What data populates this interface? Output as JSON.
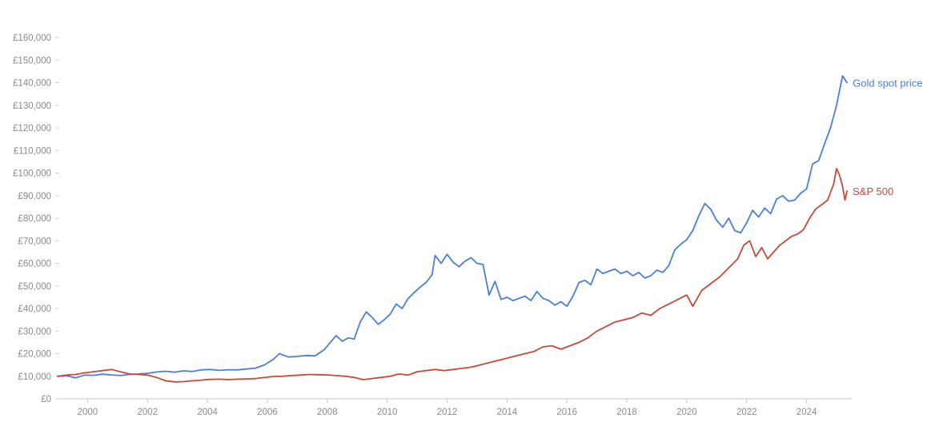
{
  "chart_data": {
    "type": "line",
    "title": "",
    "xlabel": "",
    "ylabel": "",
    "xlim": [
      1999.0,
      2025.4
    ],
    "ylim": [
      0,
      160000
    ],
    "grid": false,
    "legend": "labels at line ends",
    "y_ticks": [
      0,
      10000,
      20000,
      30000,
      40000,
      50000,
      60000,
      70000,
      80000,
      90000,
      100000,
      110000,
      120000,
      130000,
      140000,
      150000,
      160000
    ],
    "y_tick_labels": [
      "£0",
      "£10,000",
      "£20,000",
      "£30,000",
      "£40,000",
      "£50,000",
      "£60,000",
      "£70,000",
      "£80,000",
      "£90,000",
      "£100,000",
      "£110,000",
      "£120,000",
      "£130,000",
      "£140,000",
      "£150,000",
      "£160,000"
    ],
    "x_ticks": [
      2000,
      2002,
      2004,
      2006,
      2008,
      2010,
      2012,
      2014,
      2016,
      2018,
      2020,
      2022,
      2024
    ],
    "x_tick_labels": [
      "2000",
      "2002",
      "2004",
      "2006",
      "2008",
      "2010",
      "2012",
      "2014",
      "2016",
      "2018",
      "2020",
      "2022",
      "2024"
    ],
    "series": [
      {
        "name": "Gold spot price",
        "color": "#4a7fd8",
        "points": [
          [
            1999.0,
            10000
          ],
          [
            1999.3,
            10200
          ],
          [
            1999.6,
            9300
          ],
          [
            1999.9,
            10500
          ],
          [
            2000.2,
            10400
          ],
          [
            2000.5,
            10900
          ],
          [
            2000.8,
            10600
          ],
          [
            2001.1,
            10300
          ],
          [
            2001.4,
            10800
          ],
          [
            2001.7,
            11000
          ],
          [
            2002.0,
            11300
          ],
          [
            2002.3,
            11900
          ],
          [
            2002.6,
            12200
          ],
          [
            2002.9,
            11800
          ],
          [
            2003.2,
            12400
          ],
          [
            2003.5,
            12100
          ],
          [
            2003.8,
            12800
          ],
          [
            2004.1,
            13000
          ],
          [
            2004.4,
            12600
          ],
          [
            2004.7,
            12900
          ],
          [
            2005.0,
            12800
          ],
          [
            2005.3,
            13200
          ],
          [
            2005.6,
            13600
          ],
          [
            2005.9,
            15000
          ],
          [
            2006.2,
            17500
          ],
          [
            2006.4,
            20000
          ],
          [
            2006.7,
            18500
          ],
          [
            2007.0,
            18800
          ],
          [
            2007.3,
            19200
          ],
          [
            2007.6,
            19000
          ],
          [
            2007.9,
            21800
          ],
          [
            2008.1,
            25000
          ],
          [
            2008.3,
            28000
          ],
          [
            2008.5,
            25500
          ],
          [
            2008.7,
            27000
          ],
          [
            2008.9,
            26500
          ],
          [
            2009.1,
            34000
          ],
          [
            2009.3,
            38500
          ],
          [
            2009.5,
            36000
          ],
          [
            2009.7,
            33000
          ],
          [
            2009.9,
            35000
          ],
          [
            2010.1,
            37500
          ],
          [
            2010.3,
            42000
          ],
          [
            2010.5,
            40000
          ],
          [
            2010.7,
            44500
          ],
          [
            2010.9,
            47000
          ],
          [
            2011.1,
            49500
          ],
          [
            2011.3,
            51500
          ],
          [
            2011.5,
            55000
          ],
          [
            2011.6,
            63500
          ],
          [
            2011.8,
            60000
          ],
          [
            2012.0,
            64000
          ],
          [
            2012.2,
            60500
          ],
          [
            2012.4,
            58500
          ],
          [
            2012.6,
            61000
          ],
          [
            2012.8,
            62500
          ],
          [
            2013.0,
            60000
          ],
          [
            2013.2,
            59500
          ],
          [
            2013.4,
            46000
          ],
          [
            2013.6,
            52000
          ],
          [
            2013.8,
            44000
          ],
          [
            2014.0,
            45000
          ],
          [
            2014.2,
            43500
          ],
          [
            2014.4,
            44500
          ],
          [
            2014.6,
            45500
          ],
          [
            2014.8,
            43500
          ],
          [
            2015.0,
            47500
          ],
          [
            2015.2,
            44500
          ],
          [
            2015.4,
            43500
          ],
          [
            2015.6,
            41500
          ],
          [
            2015.8,
            43000
          ],
          [
            2016.0,
            41000
          ],
          [
            2016.2,
            45500
          ],
          [
            2016.4,
            51500
          ],
          [
            2016.6,
            52500
          ],
          [
            2016.8,
            50500
          ],
          [
            2017.0,
            57500
          ],
          [
            2017.2,
            55500
          ],
          [
            2017.4,
            56500
          ],
          [
            2017.6,
            57500
          ],
          [
            2017.8,
            55500
          ],
          [
            2018.0,
            56500
          ],
          [
            2018.2,
            54500
          ],
          [
            2018.4,
            56000
          ],
          [
            2018.6,
            53500
          ],
          [
            2018.8,
            54500
          ],
          [
            2019.0,
            57000
          ],
          [
            2019.2,
            56000
          ],
          [
            2019.4,
            59000
          ],
          [
            2019.6,
            66000
          ],
          [
            2019.8,
            68500
          ],
          [
            2020.0,
            70500
          ],
          [
            2020.2,
            74500
          ],
          [
            2020.4,
            81000
          ],
          [
            2020.6,
            86500
          ],
          [
            2020.8,
            84000
          ],
          [
            2021.0,
            79000
          ],
          [
            2021.2,
            76000
          ],
          [
            2021.4,
            80000
          ],
          [
            2021.6,
            74500
          ],
          [
            2021.8,
            73500
          ],
          [
            2022.0,
            78000
          ],
          [
            2022.2,
            83500
          ],
          [
            2022.4,
            80500
          ],
          [
            2022.6,
            84500
          ],
          [
            2022.8,
            82000
          ],
          [
            2023.0,
            88500
          ],
          [
            2023.2,
            90000
          ],
          [
            2023.4,
            87500
          ],
          [
            2023.6,
            88000
          ],
          [
            2023.8,
            91000
          ],
          [
            2024.0,
            93000
          ],
          [
            2024.2,
            104000
          ],
          [
            2024.4,
            105500
          ],
          [
            2024.6,
            113000
          ],
          [
            2024.8,
            120000
          ],
          [
            2025.0,
            130000
          ],
          [
            2025.2,
            143000
          ],
          [
            2025.35,
            140000
          ]
        ]
      },
      {
        "name": "S&P 500",
        "color": "#c64a3c",
        "points": [
          [
            1999.0,
            10000
          ],
          [
            1999.3,
            10500
          ],
          [
            1999.6,
            10800
          ],
          [
            1999.9,
            11500
          ],
          [
            2000.2,
            12000
          ],
          [
            2000.5,
            12500
          ],
          [
            2000.8,
            13000
          ],
          [
            2001.1,
            12000
          ],
          [
            2001.4,
            11000
          ],
          [
            2001.7,
            10800
          ],
          [
            2002.0,
            10500
          ],
          [
            2002.3,
            9500
          ],
          [
            2002.6,
            8000
          ],
          [
            2002.9,
            7500
          ],
          [
            2003.2,
            7600
          ],
          [
            2003.5,
            8000
          ],
          [
            2003.8,
            8300
          ],
          [
            2004.1,
            8600
          ],
          [
            2004.4,
            8700
          ],
          [
            2004.7,
            8500
          ],
          [
            2005.0,
            8700
          ],
          [
            2005.3,
            8800
          ],
          [
            2005.6,
            9000
          ],
          [
            2005.9,
            9400
          ],
          [
            2006.2,
            9900
          ],
          [
            2006.5,
            10000
          ],
          [
            2006.8,
            10300
          ],
          [
            2007.1,
            10500
          ],
          [
            2007.4,
            10800
          ],
          [
            2007.7,
            10700
          ],
          [
            2008.0,
            10600
          ],
          [
            2008.3,
            10300
          ],
          [
            2008.6,
            10000
          ],
          [
            2008.9,
            9500
          ],
          [
            2009.2,
            8500
          ],
          [
            2009.5,
            9000
          ],
          [
            2009.8,
            9500
          ],
          [
            2010.1,
            10000
          ],
          [
            2010.4,
            11000
          ],
          [
            2010.7,
            10500
          ],
          [
            2011.0,
            12000
          ],
          [
            2011.3,
            12500
          ],
          [
            2011.6,
            13000
          ],
          [
            2011.9,
            12500
          ],
          [
            2012.2,
            13000
          ],
          [
            2012.5,
            13500
          ],
          [
            2012.8,
            14000
          ],
          [
            2013.1,
            15000
          ],
          [
            2013.4,
            16000
          ],
          [
            2013.7,
            17000
          ],
          [
            2014.0,
            18000
          ],
          [
            2014.3,
            19000
          ],
          [
            2014.6,
            20000
          ],
          [
            2014.9,
            21000
          ],
          [
            2015.2,
            23000
          ],
          [
            2015.5,
            23500
          ],
          [
            2015.8,
            22000
          ],
          [
            2016.1,
            23500
          ],
          [
            2016.4,
            25000
          ],
          [
            2016.7,
            27000
          ],
          [
            2017.0,
            30000
          ],
          [
            2017.3,
            32000
          ],
          [
            2017.6,
            34000
          ],
          [
            2017.9,
            35000
          ],
          [
            2018.2,
            36000
          ],
          [
            2018.5,
            38000
          ],
          [
            2018.8,
            37000
          ],
          [
            2019.1,
            40000
          ],
          [
            2019.4,
            42000
          ],
          [
            2019.7,
            44000
          ],
          [
            2020.0,
            46000
          ],
          [
            2020.2,
            41000
          ],
          [
            2020.5,
            48000
          ],
          [
            2020.8,
            51000
          ],
          [
            2021.1,
            54000
          ],
          [
            2021.4,
            58000
          ],
          [
            2021.7,
            62000
          ],
          [
            2021.9,
            68000
          ],
          [
            2022.1,
            70000
          ],
          [
            2022.3,
            63000
          ],
          [
            2022.5,
            67000
          ],
          [
            2022.7,
            62000
          ],
          [
            2022.9,
            65000
          ],
          [
            2023.1,
            68000
          ],
          [
            2023.3,
            70000
          ],
          [
            2023.5,
            72000
          ],
          [
            2023.7,
            73000
          ],
          [
            2023.9,
            75000
          ],
          [
            2024.1,
            80000
          ],
          [
            2024.3,
            84000
          ],
          [
            2024.5,
            86000
          ],
          [
            2024.7,
            88000
          ],
          [
            2024.9,
            95000
          ],
          [
            2025.0,
            102000
          ],
          [
            2025.1,
            99000
          ],
          [
            2025.2,
            94000
          ],
          [
            2025.28,
            88000
          ],
          [
            2025.35,
            92000
          ]
        ]
      }
    ]
  }
}
